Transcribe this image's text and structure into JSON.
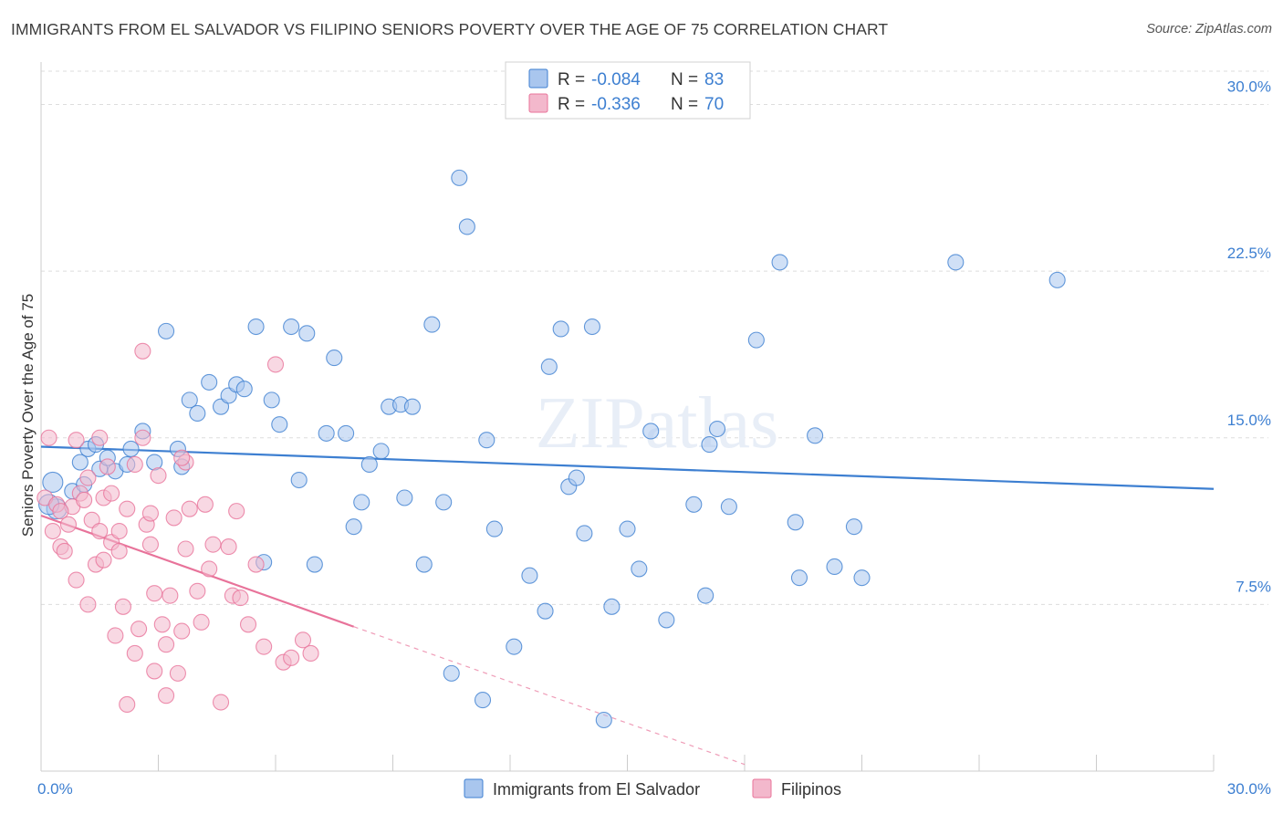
{
  "title": "IMMIGRANTS FROM EL SALVADOR VS FILIPINO SENIORS POVERTY OVER THE AGE OF 75 CORRELATION CHART",
  "source": "Source: ZipAtlas.com",
  "watermark": "ZIPatlas",
  "colors": {
    "blue": "#3d7fd1",
    "blue_fill": "#a9c6ee",
    "pink": "#e8739a",
    "pink_fill": "#f3b8cc",
    "grid": "#dddddd",
    "tick_text": "#3d7fd1"
  },
  "legend": {
    "rows": [
      {
        "r_label": "R =",
        "r_value": "-0.084",
        "n_label": "N =",
        "n_value": "83"
      },
      {
        "r_label": "R =",
        "r_value": "-0.336",
        "n_label": "N =",
        "n_value": "70"
      }
    ]
  },
  "bottom_legend": [
    "Immigrants from El Salvador",
    "Filipinos"
  ],
  "chart_data": {
    "type": "scatter",
    "title": "IMMIGRANTS FROM EL SALVADOR VS FILIPINO SENIORS POVERTY OVER THE AGE OF 75 CORRELATION CHART",
    "xlabel": "",
    "ylabel": "Seniors Poverty Over the Age of 75",
    "xlim": [
      0,
      30
    ],
    "ylim": [
      0,
      31.5
    ],
    "x_tick_labels": [
      "0.0%",
      "30.0%"
    ],
    "y_ticks": [
      7.5,
      15.0,
      22.5,
      30.0
    ],
    "y_tick_labels": [
      "7.5%",
      "15.0%",
      "22.5%",
      "30.0%"
    ],
    "grid": true,
    "legend_position": "top-center",
    "series": [
      {
        "name": "Immigrants from El Salvador",
        "color": "#3d7fd1",
        "trend": {
          "x": [
            0,
            30
          ],
          "y": [
            14.6,
            12.7
          ]
        },
        "points": [
          [
            0.3,
            13.0
          ],
          [
            0.4,
            11.8
          ],
          [
            0.8,
            12.6
          ],
          [
            1.0,
            13.9
          ],
          [
            1.2,
            14.5
          ],
          [
            1.4,
            14.7
          ],
          [
            1.5,
            13.6
          ],
          [
            1.7,
            14.1
          ],
          [
            1.9,
            13.5
          ],
          [
            2.2,
            13.8
          ],
          [
            2.3,
            14.5
          ],
          [
            2.6,
            15.3
          ],
          [
            2.9,
            13.9
          ],
          [
            3.2,
            19.8
          ],
          [
            3.5,
            14.5
          ],
          [
            3.6,
            13.7
          ],
          [
            3.8,
            16.7
          ],
          [
            4.0,
            16.1
          ],
          [
            4.3,
            17.5
          ],
          [
            4.6,
            16.4
          ],
          [
            4.8,
            16.9
          ],
          [
            5.0,
            17.4
          ],
          [
            5.2,
            17.2
          ],
          [
            5.5,
            20.0
          ],
          [
            5.7,
            9.4
          ],
          [
            5.9,
            16.7
          ],
          [
            6.1,
            15.6
          ],
          [
            6.4,
            20.0
          ],
          [
            6.6,
            13.1
          ],
          [
            6.8,
            19.7
          ],
          [
            7.0,
            9.3
          ],
          [
            7.3,
            15.2
          ],
          [
            7.5,
            18.6
          ],
          [
            7.8,
            15.2
          ],
          [
            8.0,
            11.0
          ],
          [
            8.2,
            12.1
          ],
          [
            8.4,
            13.8
          ],
          [
            8.7,
            14.4
          ],
          [
            8.9,
            16.4
          ],
          [
            9.2,
            16.5
          ],
          [
            9.3,
            12.3
          ],
          [
            9.5,
            16.4
          ],
          [
            9.8,
            9.3
          ],
          [
            10.0,
            20.1
          ],
          [
            10.3,
            12.1
          ],
          [
            10.5,
            4.4
          ],
          [
            10.7,
            26.7
          ],
          [
            10.9,
            24.5
          ],
          [
            11.3,
            3.2
          ],
          [
            11.4,
            14.9
          ],
          [
            11.6,
            10.9
          ],
          [
            12.1,
            5.6
          ],
          [
            12.5,
            8.8
          ],
          [
            12.9,
            7.2
          ],
          [
            13.0,
            18.2
          ],
          [
            13.3,
            19.9
          ],
          [
            13.5,
            12.8
          ],
          [
            13.7,
            13.2
          ],
          [
            13.9,
            10.7
          ],
          [
            14.1,
            20.0
          ],
          [
            14.4,
            2.3
          ],
          [
            14.6,
            7.4
          ],
          [
            15.0,
            10.9
          ],
          [
            15.3,
            9.1
          ],
          [
            15.6,
            15.3
          ],
          [
            16.0,
            6.8
          ],
          [
            16.7,
            12.0
          ],
          [
            17.0,
            7.9
          ],
          [
            17.1,
            14.7
          ],
          [
            17.3,
            15.4
          ],
          [
            17.6,
            11.9
          ],
          [
            18.3,
            19.4
          ],
          [
            18.9,
            22.9
          ],
          [
            19.3,
            11.2
          ],
          [
            19.4,
            8.7
          ],
          [
            19.8,
            15.1
          ],
          [
            20.3,
            9.2
          ],
          [
            20.8,
            11.0
          ],
          [
            21.0,
            8.7
          ],
          [
            23.4,
            22.9
          ],
          [
            26.0,
            22.1
          ],
          [
            0.2,
            12.0
          ],
          [
            1.1,
            12.9
          ]
        ]
      },
      {
        "name": "Filipinos",
        "color": "#e8739a",
        "trend": {
          "x": [
            0,
            8.0
          ],
          "y": [
            11.5,
            6.5
          ]
        },
        "trend_dashed": {
          "x": [
            8.0,
            18.0
          ],
          "y": [
            6.5,
            0.3
          ]
        },
        "points": [
          [
            0.1,
            12.3
          ],
          [
            0.2,
            15.0
          ],
          [
            0.3,
            10.8
          ],
          [
            0.4,
            12.0
          ],
          [
            0.5,
            10.1
          ],
          [
            0.6,
            9.9
          ],
          [
            0.7,
            11.1
          ],
          [
            0.8,
            11.9
          ],
          [
            0.9,
            8.6
          ],
          [
            1.0,
            12.5
          ],
          [
            1.1,
            12.2
          ],
          [
            1.2,
            7.5
          ],
          [
            1.3,
            11.3
          ],
          [
            1.4,
            9.3
          ],
          [
            1.5,
            15.0
          ],
          [
            1.6,
            9.5
          ],
          [
            1.6,
            12.3
          ],
          [
            1.7,
            13.7
          ],
          [
            1.8,
            10.3
          ],
          [
            1.9,
            6.1
          ],
          [
            2.0,
            9.9
          ],
          [
            2.0,
            10.8
          ],
          [
            2.1,
            7.4
          ],
          [
            2.2,
            3.0
          ],
          [
            2.4,
            5.3
          ],
          [
            2.5,
            6.4
          ],
          [
            2.6,
            15.0
          ],
          [
            2.6,
            18.9
          ],
          [
            2.7,
            11.1
          ],
          [
            2.8,
            11.6
          ],
          [
            2.9,
            4.5
          ],
          [
            2.9,
            8.0
          ],
          [
            3.0,
            13.3
          ],
          [
            3.1,
            6.6
          ],
          [
            3.2,
            5.7
          ],
          [
            3.2,
            3.4
          ],
          [
            3.3,
            7.9
          ],
          [
            3.4,
            11.4
          ],
          [
            3.5,
            4.4
          ],
          [
            3.6,
            6.3
          ],
          [
            3.7,
            10.0
          ],
          [
            3.7,
            13.9
          ],
          [
            3.8,
            11.8
          ],
          [
            4.0,
            8.1
          ],
          [
            4.1,
            6.7
          ],
          [
            4.2,
            12.0
          ],
          [
            4.3,
            9.1
          ],
          [
            4.4,
            10.2
          ],
          [
            4.6,
            3.1
          ],
          [
            4.8,
            10.1
          ],
          [
            4.9,
            7.9
          ],
          [
            5.0,
            11.7
          ],
          [
            5.1,
            7.8
          ],
          [
            5.3,
            6.6
          ],
          [
            5.5,
            9.3
          ],
          [
            5.7,
            5.6
          ],
          [
            6.0,
            18.3
          ],
          [
            6.2,
            4.9
          ],
          [
            6.4,
            5.1
          ],
          [
            6.7,
            5.9
          ],
          [
            6.9,
            5.3
          ],
          [
            0.9,
            14.9
          ],
          [
            1.5,
            10.8
          ],
          [
            2.2,
            11.8
          ],
          [
            2.4,
            13.8
          ],
          [
            2.8,
            10.2
          ],
          [
            0.5,
            11.7
          ],
          [
            1.8,
            12.5
          ],
          [
            3.6,
            14.1
          ],
          [
            1.2,
            13.2
          ]
        ]
      }
    ]
  }
}
